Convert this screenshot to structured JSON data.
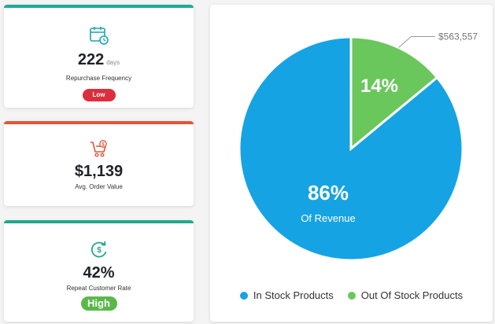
{
  "cards": [
    {
      "value": "222",
      "unit": "days",
      "label": "Repurchase Frequency",
      "badge": "Low",
      "badge_color": "#dc2f3e",
      "bar_color": "#21a99a",
      "icon": "calendar-clock-icon",
      "icon_color": "#1aa5b2"
    },
    {
      "value": "$1,139",
      "label": "Avg. Order Value",
      "bar_color": "#e3553a",
      "icon": "shopping-cart-dollar-icon",
      "icon_color": "#e3553a"
    },
    {
      "value": "42%",
      "label": "Repeat Customer Rate",
      "badge": "High",
      "badge_color": "#5ab848",
      "bar_color": "#21a98a",
      "icon": "refresh-dollar-icon",
      "icon_color": "#21a98a"
    }
  ],
  "chart_data": {
    "type": "pie",
    "slices": [
      {
        "name": "In Stock Products",
        "value": 86,
        "label": "86%",
        "sublabel": "Of Revenue",
        "color": "#16a3e3"
      },
      {
        "name": "Out Of Stock Products",
        "value": 14,
        "label": "14%",
        "callout": "$563,557",
        "color": "#6ac75c"
      }
    ],
    "legend_position": "bottom"
  }
}
